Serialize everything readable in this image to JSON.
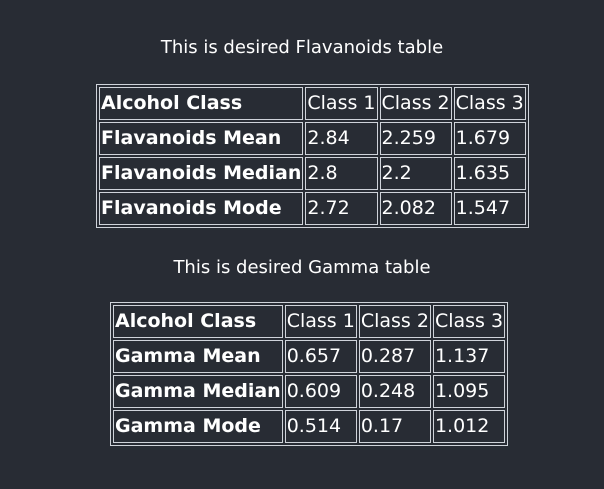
{
  "flavanoids": {
    "caption": "This is desired Flavanoids table",
    "header": [
      "Alcohol Class",
      "Class 1",
      "Class 2",
      "Class 3"
    ],
    "rows": [
      [
        "Flavanoids Mean",
        "2.84",
        "2.259",
        "1.679"
      ],
      [
        "Flavanoids Median",
        "2.8",
        "2.2",
        "1.635"
      ],
      [
        "Flavanoids Mode",
        "2.72",
        "2.082",
        "1.547"
      ]
    ]
  },
  "gamma": {
    "caption": "This is desired Gamma table",
    "header": [
      "Alcohol Class",
      "Class 1",
      "Class 2",
      "Class 3"
    ],
    "rows": [
      [
        "Gamma Mean",
        "0.657",
        "0.287",
        "1.137"
      ],
      [
        "Gamma Median",
        "0.609",
        "0.248",
        "1.095"
      ],
      [
        "Gamma Mode",
        "0.514",
        "0.17",
        "1.012"
      ]
    ]
  }
}
